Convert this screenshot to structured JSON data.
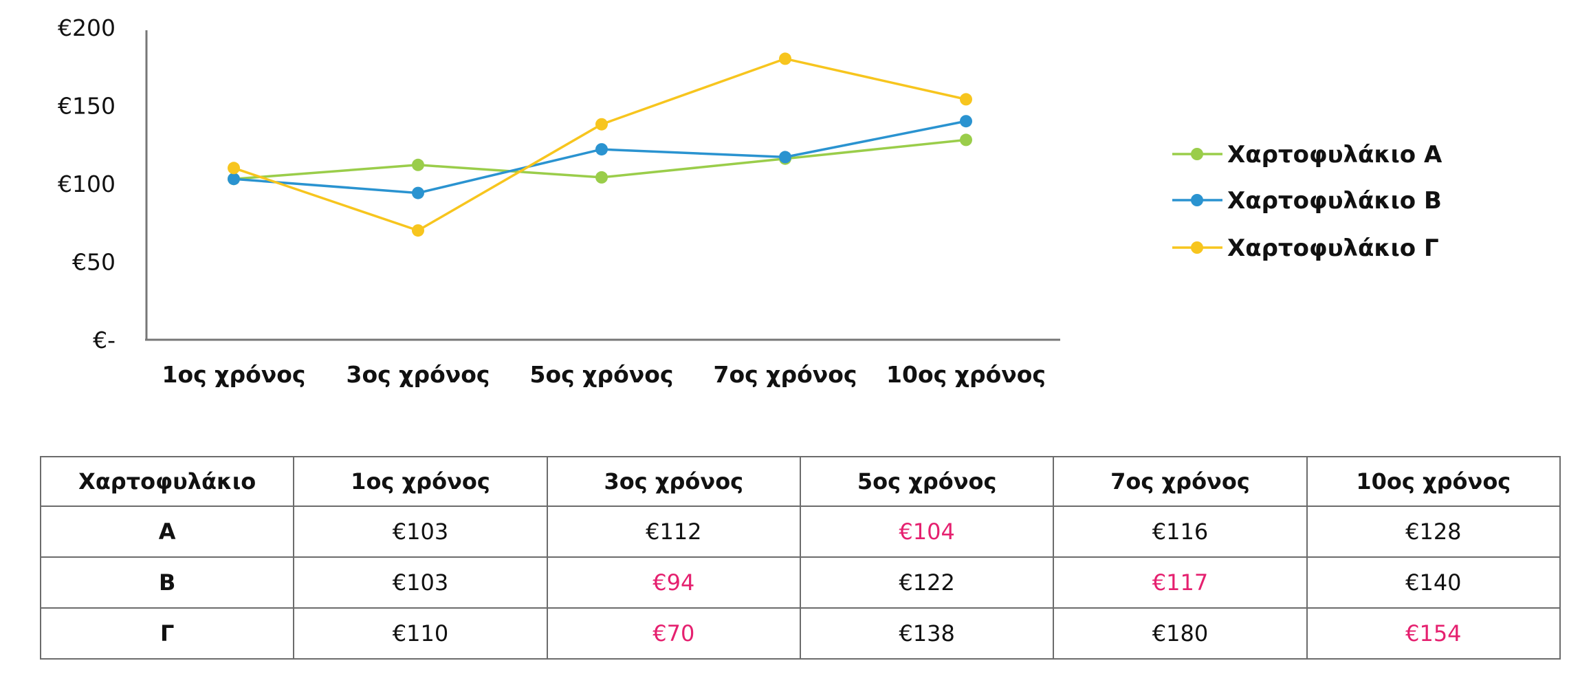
{
  "chart_data": {
    "type": "line",
    "categories": [
      "1ος χρόνος",
      "3ος χρόνος",
      "5ος χρόνος",
      "7ος χρόνος",
      "10ος χρόνος"
    ],
    "ylim": [
      0,
      200
    ],
    "y_ticks": [
      0,
      50,
      100,
      150,
      200
    ],
    "y_tick_labels": [
      "€-",
      "€50",
      "€100",
      "€150",
      "€200"
    ],
    "grid": false,
    "legend_position": "right",
    "series": [
      {
        "name": "Χαρτοφυλάκιο A",
        "color": "#9acd4a",
        "values": [
          103,
          112,
          104,
          116,
          128
        ]
      },
      {
        "name": "Χαρτοφυλάκιο B",
        "color": "#2a93d0",
        "values": [
          103,
          94,
          122,
          117,
          140
        ]
      },
      {
        "name": "Χαρτοφυλάκιο Γ",
        "color": "#f7c51e",
        "values": [
          110,
          70,
          138,
          180,
          154
        ]
      }
    ]
  },
  "table": {
    "headers": [
      "Χαρτοφυλάκιο",
      "1ος χρόνος",
      "3ος χρόνος",
      "5ος χρόνος",
      "7ος χρόνος",
      "10ος χρόνος"
    ],
    "rows": [
      {
        "label": "A",
        "cells": [
          "€103",
          "€112",
          "€104",
          "€116",
          "€128"
        ],
        "highlight": [
          false,
          false,
          true,
          false,
          false
        ]
      },
      {
        "label": "B",
        "cells": [
          "€103",
          "€94",
          "€122",
          "€117",
          "€140"
        ],
        "highlight": [
          false,
          true,
          false,
          true,
          false
        ]
      },
      {
        "label": "Γ",
        "cells": [
          "€110",
          "€70",
          "€138",
          "€180",
          "€154"
        ],
        "highlight": [
          false,
          true,
          false,
          false,
          true
        ]
      }
    ],
    "highlight_color": "#e5206f"
  }
}
